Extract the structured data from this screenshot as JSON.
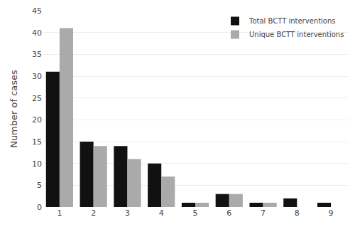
{
  "chart_data": {
    "type": "bar",
    "categories": [
      1,
      2,
      3,
      4,
      5,
      6,
      7,
      8,
      9
    ],
    "series": [
      {
        "name": "Total BCTT interventions",
        "color": "#111111",
        "values": [
          31,
          15,
          14,
          10,
          1,
          3,
          1,
          2,
          1
        ]
      },
      {
        "name": "Unique BCTT interventions",
        "color": "#aaaaaa",
        "values": [
          41,
          14,
          11,
          7,
          1,
          3,
          1,
          0,
          0
        ]
      }
    ],
    "ylabel": "Number of cases",
    "ylim": [
      0,
      45
    ],
    "yticks": [
      0,
      5,
      10,
      15,
      20,
      25,
      30,
      35,
      40,
      45
    ],
    "grid": true,
    "legend": "upper right"
  }
}
